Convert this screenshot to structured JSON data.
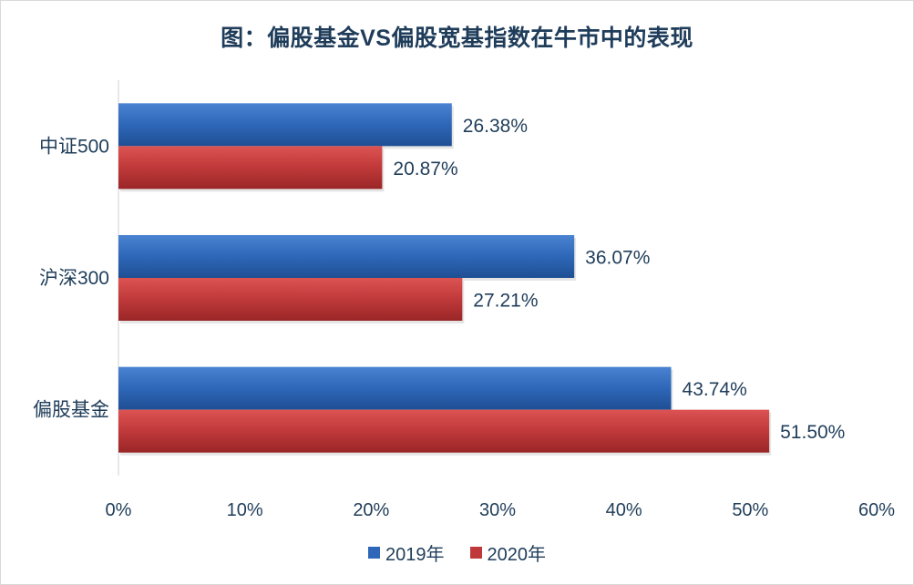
{
  "chart_data": {
    "type": "bar",
    "orientation": "horizontal",
    "title": "图：偏股基金VS偏股宽基指数在牛市中的表现",
    "categories": [
      "中证500",
      "沪深300",
      "偏股基金"
    ],
    "series": [
      {
        "name": "2019年",
        "values": [
          26.38,
          36.07,
          43.74
        ],
        "labels": [
          "26.38%",
          "36.07%",
          "43.74%"
        ],
        "color": "#2e67b8"
      },
      {
        "name": "2020年",
        "values": [
          20.87,
          27.21,
          51.5
        ],
        "labels": [
          "20.87%",
          "27.21%",
          "51.50%"
        ],
        "color": "#c0393a"
      }
    ],
    "xlim": [
      0,
      60
    ],
    "xticks": [
      "0%",
      "10%",
      "20%",
      "30%",
      "40%",
      "50%",
      "60%"
    ],
    "grid": false,
    "legend_position": "bottom"
  }
}
